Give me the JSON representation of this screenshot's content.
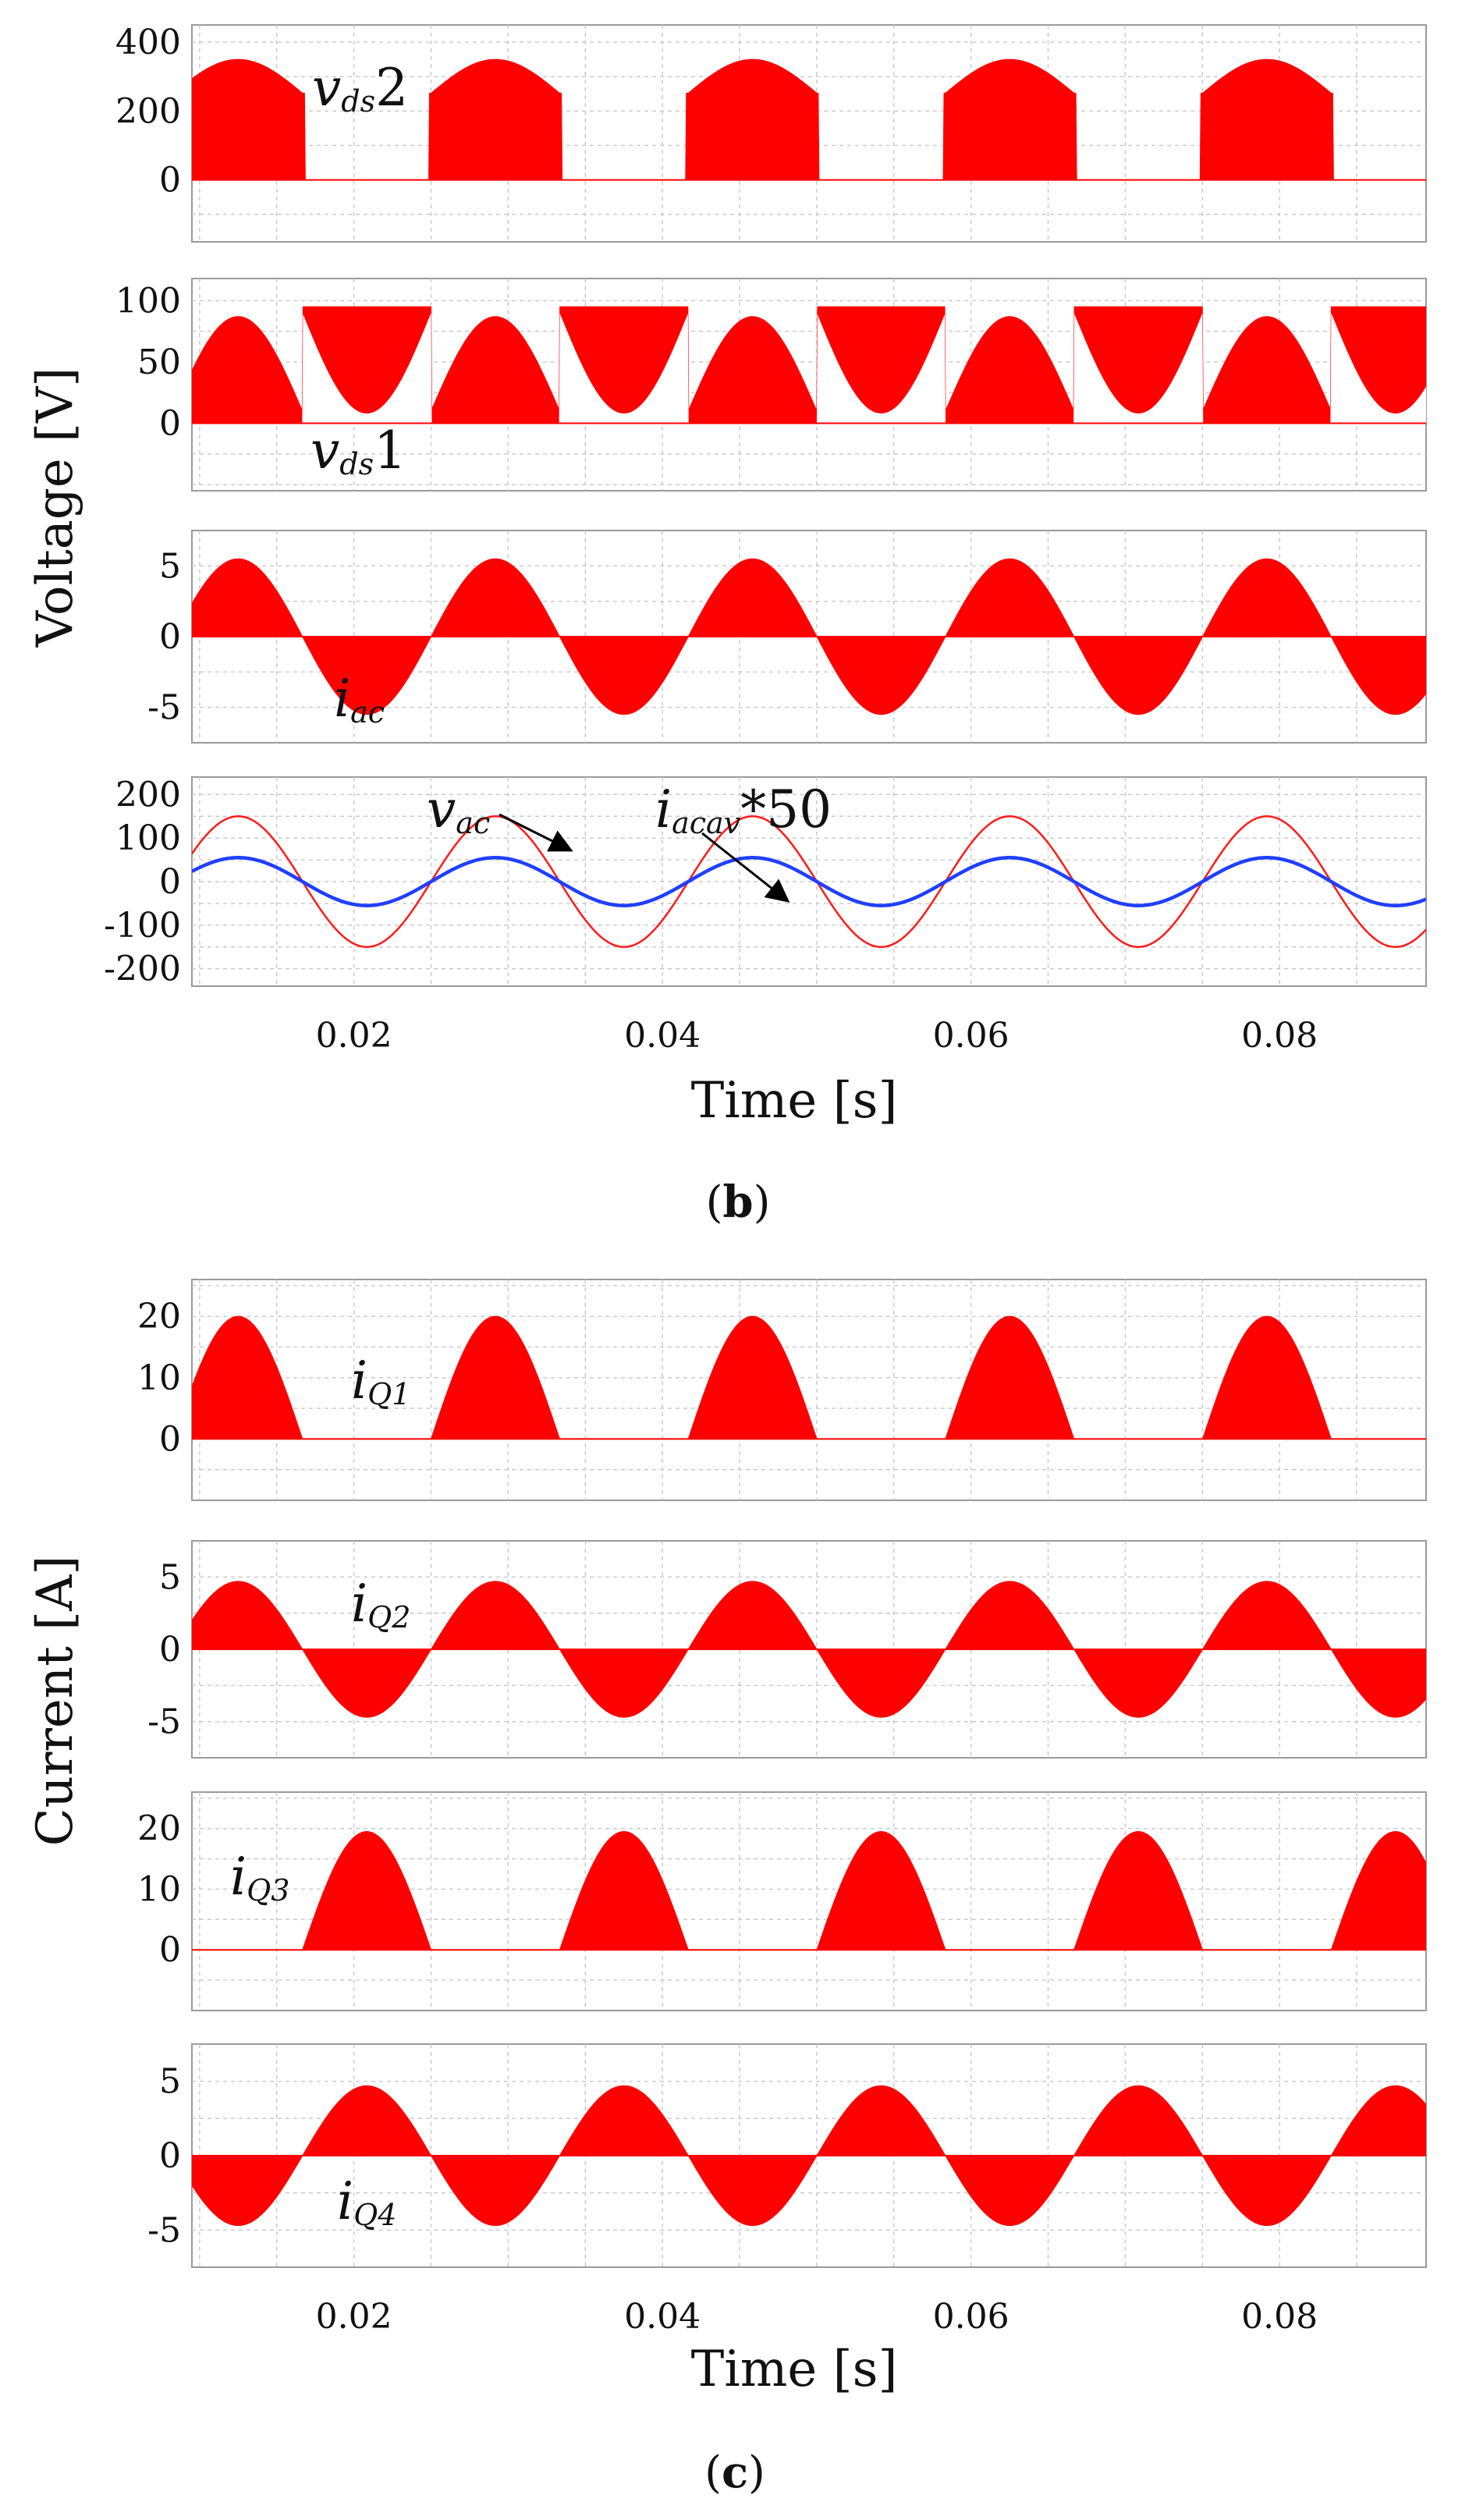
{
  "figure_b": {
    "caption_label": "b",
    "y_axis_title": "Voltage [V]",
    "x_axis_title": "Time [s]"
  },
  "figure_c": {
    "caption_label": "c",
    "y_axis_title": "Current [A]",
    "x_axis_title": "Time [s]"
  },
  "colors": {
    "fill": "#ff0000",
    "line_red": "#ff1a1a",
    "line_blue": "#1f3fff",
    "frame": "#9a9a9a",
    "grid": "#c8c8c8"
  },
  "chart_data": [
    {
      "id": "vds2",
      "figure": "b",
      "type": "area",
      "xlim": [
        0.0095,
        0.0895
      ],
      "ylim": [
        -180,
        450
      ],
      "yticks": [
        0,
        200,
        400
      ],
      "ytick_labels": [
        "0",
        "200",
        "400"
      ],
      "grid": true,
      "annotation": {
        "main": "v",
        "sub": "ds",
        "suffix": "2"
      },
      "waveform": {
        "kind": "block_on",
        "amplitude": 350,
        "offset": 0,
        "on_phase_start": 0.5,
        "on_phase_end": 0.0,
        "period": 0.01667
      }
    },
    {
      "id": "vds1",
      "figure": "b",
      "type": "area",
      "xlim": [
        0.0095,
        0.0895
      ],
      "ylim": [
        -55,
        118
      ],
      "yticks": [
        0,
        50,
        100
      ],
      "ytick_labels": [
        "0",
        "50",
        "100"
      ],
      "grid": true,
      "annotation": {
        "main": "v",
        "sub": "ds",
        "suffix": "1"
      },
      "waveform": {
        "kind": "vds1",
        "amplitude": 95,
        "clamp": 95,
        "offset": 0,
        "period": 0.01667
      }
    },
    {
      "id": "iac",
      "figure": "b",
      "type": "area",
      "xlim": [
        0.0095,
        0.0895
      ],
      "ylim": [
        -7.5,
        7.5
      ],
      "yticks": [
        -5,
        0,
        5
      ],
      "ytick_labels": [
        "-5",
        "0",
        "5"
      ],
      "grid": true,
      "annotation": {
        "main": "i",
        "sub": "ac",
        "suffix": ""
      },
      "waveform": {
        "kind": "sine",
        "amplitude": 5.5,
        "offset": 0,
        "period": 0.01667
      }
    },
    {
      "id": "vac_iacav",
      "figure": "b",
      "type": "line",
      "xlim": [
        0.0095,
        0.0895
      ],
      "ylim": [
        -240,
        240
      ],
      "yticks": [
        -200,
        -100,
        0,
        100,
        200
      ],
      "ytick_labels": [
        "-200",
        "-100",
        "0",
        "100",
        "200"
      ],
      "grid": true,
      "x_ticks": [
        0.02,
        0.04,
        0.06,
        0.08
      ],
      "x_tick_labels": [
        "0.02",
        "0.04",
        "0.06",
        "0.08"
      ],
      "annotations": [
        {
          "main": "v",
          "sub": "ac",
          "suffix": ""
        },
        {
          "main": "i",
          "sub": "acav",
          "suffix": "*50"
        }
      ],
      "series": [
        {
          "name": "v_ac",
          "amplitude": 150,
          "period": 0.01667,
          "color": "#ff1a1a"
        },
        {
          "name": "i_acav*50",
          "amplitude": 55,
          "period": 0.01667,
          "color": "#1f3fff"
        }
      ]
    },
    {
      "id": "iQ1",
      "figure": "c",
      "type": "area",
      "xlim": [
        0.0095,
        0.0895
      ],
      "ylim": [
        -10,
        26
      ],
      "yticks": [
        0,
        10,
        20
      ],
      "ytick_labels": [
        "0",
        "10",
        "20"
      ],
      "grid": true,
      "annotation": {
        "main": "i",
        "sub": "Q1",
        "suffix": ""
      },
      "waveform": {
        "kind": "pos_half",
        "amplitude": 20,
        "offset": 0,
        "period": 0.01667
      }
    },
    {
      "id": "iQ2",
      "figure": "c",
      "type": "area",
      "xlim": [
        0.0095,
        0.0895
      ],
      "ylim": [
        -7.5,
        7.5
      ],
      "yticks": [
        -5,
        0,
        5
      ],
      "ytick_labels": [
        "-5",
        "0",
        "5"
      ],
      "grid": true,
      "annotation": {
        "main": "i",
        "sub": "Q2",
        "suffix": ""
      },
      "waveform": {
        "kind": "sine",
        "amplitude": 4.7,
        "offset": 0,
        "period": 0.01667
      }
    },
    {
      "id": "iQ3",
      "figure": "c",
      "type": "area",
      "xlim": [
        0.0095,
        0.0895
      ],
      "ylim": [
        -10,
        26
      ],
      "yticks": [
        0,
        10,
        20
      ],
      "ytick_labels": [
        "0",
        "10",
        "20"
      ],
      "grid": true,
      "annotation": {
        "main": "i",
        "sub": "Q3",
        "suffix": ""
      },
      "waveform": {
        "kind": "neg_half",
        "amplitude": 19.5,
        "offset": 0,
        "period": 0.01667
      }
    },
    {
      "id": "iQ4",
      "figure": "c",
      "type": "area",
      "xlim": [
        0.0095,
        0.0895
      ],
      "ylim": [
        -7.5,
        7.5
      ],
      "yticks": [
        -5,
        0,
        5
      ],
      "ytick_labels": [
        "-5",
        "0",
        "5"
      ],
      "grid": true,
      "x_ticks": [
        0.02,
        0.04,
        0.06,
        0.08
      ],
      "x_tick_labels": [
        "0.02",
        "0.04",
        "0.06",
        "0.08"
      ],
      "annotation": {
        "main": "i",
        "sub": "Q4",
        "suffix": ""
      },
      "waveform": {
        "kind": "sine_inv",
        "amplitude": 4.7,
        "offset": 0,
        "period": 0.01667
      }
    }
  ]
}
